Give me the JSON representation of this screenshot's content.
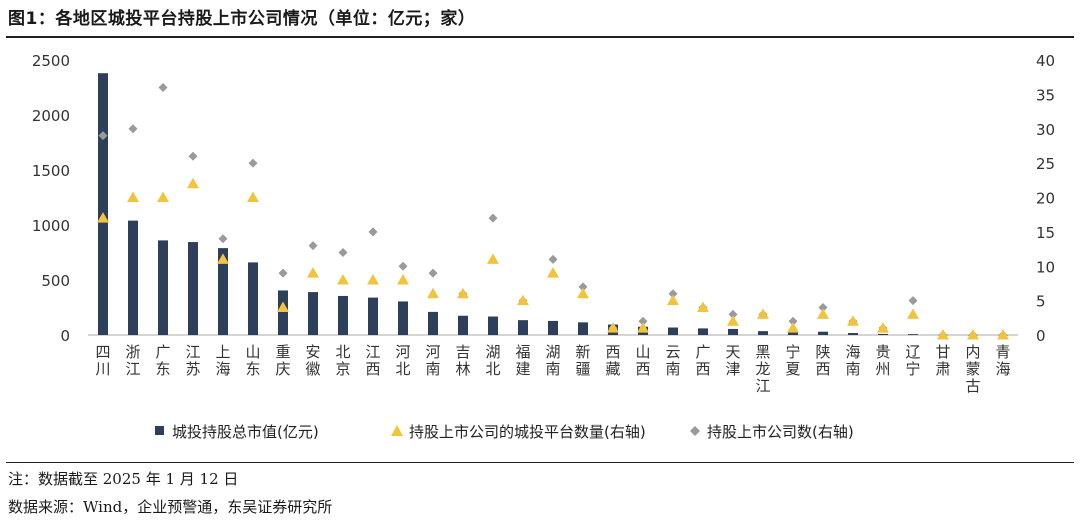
{
  "header": {
    "title": "图1：各地区城投平台持股上市公司情况（单位：亿元；家）"
  },
  "footer": {
    "note": "注：数据截至 2025 年 1 月 12 日",
    "source": "数据来源：Wind，企业预警通，东吴证券研究所"
  },
  "chart_data": {
    "type": "bar",
    "categories": [
      "四川",
      "浙江",
      "广东",
      "江苏",
      "上海",
      "山东",
      "重庆",
      "安徽",
      "北京",
      "江西",
      "河北",
      "河南",
      "吉林",
      "湖北",
      "福建",
      "湖南",
      "新疆",
      "西藏",
      "山西",
      "云南",
      "广西",
      "天津",
      "黑龙江",
      "宁夏",
      "陕西",
      "海南",
      "贵州",
      "辽宁",
      "甘肃",
      "内蒙古",
      "青海"
    ],
    "y_left": {
      "ticks": [
        "0",
        "500",
        "1000",
        "1500",
        "2000",
        "2500"
      ],
      "ylim": [
        0,
        2500
      ]
    },
    "y_right": {
      "ticks": [
        "0",
        "5",
        "10",
        "15",
        "20",
        "25",
        "30",
        "35",
        "40"
      ],
      "ylim": [
        0,
        40
      ]
    },
    "grid": false,
    "legend_position": "bottom",
    "series": [
      {
        "name": "城投持股总市值(亿元)",
        "type": "bar",
        "axis": "left",
        "color": "#2e3f5c",
        "values": [
          2380,
          1040,
          860,
          845,
          790,
          660,
          405,
          390,
          355,
          340,
          305,
          210,
          175,
          168,
          135,
          128,
          115,
          95,
          75,
          68,
          60,
          55,
          35,
          25,
          30,
          18,
          10,
          8,
          2,
          1,
          1
        ]
      },
      {
        "name": "持股上市公司的城投平台数量(右轴)",
        "type": "scatter",
        "marker": "triangle",
        "axis": "right",
        "color": "#f2c43d",
        "values": [
          17,
          20,
          20,
          22,
          11,
          20,
          4,
          9,
          8,
          8,
          8,
          6,
          6,
          11,
          5,
          9,
          6,
          1,
          1,
          5,
          4,
          2,
          3,
          1,
          3,
          2,
          1,
          3,
          0,
          0,
          0
        ]
      },
      {
        "name": "持股上市公司数(右轴)",
        "type": "scatter",
        "marker": "diamond",
        "axis": "right",
        "color": "#9a9a9a",
        "values": [
          29,
          30,
          36,
          26,
          14,
          25,
          9,
          13,
          12,
          15,
          10,
          9,
          6,
          17,
          5,
          11,
          7,
          1,
          2,
          6,
          4,
          3,
          3,
          2,
          4,
          2,
          1,
          5,
          0,
          0,
          0
        ]
      }
    ]
  }
}
